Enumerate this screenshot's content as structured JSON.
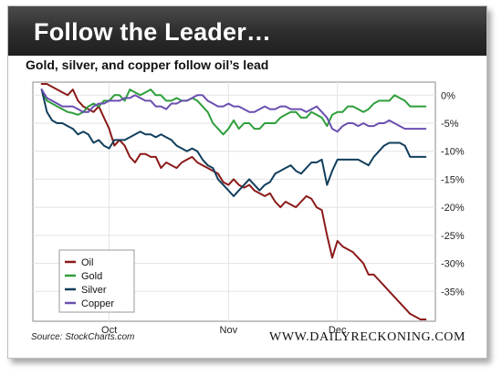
{
  "header": {
    "title": "Follow the Leader…"
  },
  "subtitle": "Gold, silver, and copper follow oil’s lead",
  "source": "Source: StockCharts.com",
  "brand": "WWW.DAILYRECKONING.COM",
  "colors": {
    "oil": "#8b1a1a",
    "gold": "#2e9e3b",
    "silver": "#123f5c",
    "copper": "#6a4fb0"
  },
  "chart_data": {
    "type": "line",
    "title": "Gold, silver, and copper follow oil’s lead",
    "xlabel": "",
    "ylabel": "",
    "x": [
      1,
      2,
      3,
      4,
      5,
      6,
      7,
      8,
      9,
      10,
      11,
      12,
      13,
      14,
      15,
      16,
      17,
      18,
      19,
      20,
      21,
      22,
      23,
      24,
      25,
      26,
      27,
      28,
      29,
      30,
      31,
      32,
      33,
      34,
      35,
      36,
      37,
      38,
      39,
      40,
      41,
      42,
      43,
      44,
      45,
      46,
      47,
      48,
      49,
      50,
      51,
      52,
      53,
      54,
      55,
      56,
      57,
      58,
      59,
      60,
      61,
      62,
      63,
      64,
      65,
      66,
      67,
      68,
      69,
      70,
      71,
      72,
      73,
      74,
      75
    ],
    "x_ticks": [
      {
        "x": 14,
        "label": "Oct"
      },
      {
        "x": 37,
        "label": "Nov"
      },
      {
        "x": 58,
        "label": "Dec"
      }
    ],
    "xlim": [
      0,
      76
    ],
    "ylim": [
      -40,
      2
    ],
    "y_ticks": [
      0,
      -5,
      -10,
      -15,
      -20,
      -25,
      -30,
      -35
    ],
    "y_tick_labels": [
      "0%",
      "-5%",
      "-10%",
      "-15%",
      "-20%",
      "-25%",
      "-30%",
      "-35%"
    ],
    "legend": {
      "position": "bottom-left",
      "entries": [
        "Oil",
        "Gold",
        "Silver",
        "Copper"
      ]
    },
    "grid": true,
    "series": [
      {
        "name": "Oil",
        "color": "#8b1a1a",
        "values": [
          2,
          2,
          1.5,
          1,
          0.5,
          0,
          1,
          -1,
          -2,
          -2.5,
          -3,
          -2,
          -4,
          -6,
          -9,
          -8,
          -9,
          -11,
          -12,
          -10.5,
          -10.5,
          -11,
          -11,
          -13,
          -12,
          -12.5,
          -13,
          -12,
          -11.5,
          -11,
          -12,
          -12.5,
          -13,
          -13.5,
          -14,
          -15.5,
          -16,
          -15,
          -16,
          -16.5,
          -16,
          -17,
          -17.5,
          -18,
          -17.5,
          -19,
          -20,
          -19,
          -19.5,
          -20,
          -19,
          -18,
          -18.5,
          -20,
          -20.5,
          -25,
          -29,
          -26,
          -27,
          -27.5,
          -28,
          -29,
          -30,
          -32,
          -32,
          -33,
          -34,
          -35,
          -36,
          -37,
          -38,
          -39,
          -39.5,
          -40,
          -40
        ]
      },
      {
        "name": "Gold",
        "color": "#2e9e3b",
        "values": [
          1,
          -1,
          -1.5,
          -2,
          -2.5,
          -3,
          -3.2,
          -3.5,
          -3,
          -2,
          -1.5,
          -2,
          -1,
          -1,
          0,
          0,
          -1,
          1,
          0.5,
          0,
          0.5,
          1,
          0,
          0,
          -1,
          -1,
          -0.5,
          -1,
          -1,
          -0.5,
          -1,
          -2,
          -3,
          -5,
          -6,
          -7,
          -6,
          -4.5,
          -6,
          -5,
          -5,
          -6,
          -6,
          -5,
          -5,
          -5,
          -4,
          -3.5,
          -3,
          -3,
          -4,
          -4,
          -3,
          -3.5,
          -4,
          -5.5,
          -3.5,
          -3,
          -3,
          -2,
          -2,
          -2.5,
          -3,
          -2.5,
          -1.5,
          -1,
          -1,
          -1,
          0,
          -0.5,
          -1,
          -2,
          -2,
          -2,
          -2
        ]
      },
      {
        "name": "Silver",
        "color": "#123f5c",
        "values": [
          1,
          -3,
          -4.5,
          -5,
          -5,
          -5.5,
          -6,
          -7,
          -6.5,
          -7,
          -8.5,
          -8,
          -9,
          -9.5,
          -8,
          -8,
          -8,
          -7.5,
          -7,
          -6.5,
          -7,
          -7,
          -7.5,
          -7,
          -7.5,
          -8,
          -9,
          -9.5,
          -10,
          -9.5,
          -10,
          -11.5,
          -12.5,
          -13,
          -15,
          -16,
          -17,
          -18,
          -17,
          -16,
          -15,
          -16,
          -17,
          -16,
          -15.5,
          -14,
          -13.5,
          -13,
          -12.5,
          -13.5,
          -14,
          -13,
          -12,
          -12,
          -11.5,
          -16,
          -13.5,
          -11.5,
          -11.5,
          -11.5,
          -11.5,
          -11.5,
          -12,
          -12.5,
          -11,
          -10,
          -9,
          -8.5,
          -8.5,
          -8.5,
          -9,
          -11,
          -11,
          -11,
          -11
        ]
      },
      {
        "name": "Copper",
        "color": "#6a4fb0",
        "values": [
          1,
          -0.5,
          -1,
          -1.5,
          -2,
          -2,
          -2,
          -2.5,
          -3,
          -3,
          -2,
          -1.5,
          -1.5,
          -1,
          -1,
          -1,
          -0.5,
          -0.5,
          0,
          -0.5,
          -1,
          -1,
          -2,
          -2,
          -2.5,
          -1.5,
          -1.5,
          -1,
          -1,
          -0.5,
          0,
          0,
          -1,
          -1.5,
          -2,
          -2,
          -1.5,
          -2,
          -2,
          -2.5,
          -3,
          -3,
          -2.5,
          -2,
          -2.5,
          -2.5,
          -2,
          -2,
          -2.5,
          -2.5,
          -2.5,
          -3,
          -2.5,
          -2,
          -3,
          -4,
          -6,
          -6.5,
          -5.5,
          -5,
          -5,
          -5.5,
          -5,
          -5.5,
          -5.5,
          -5,
          -5,
          -4.5,
          -5,
          -5.5,
          -6,
          -6,
          -6,
          -6,
          -6
        ]
      }
    ]
  }
}
